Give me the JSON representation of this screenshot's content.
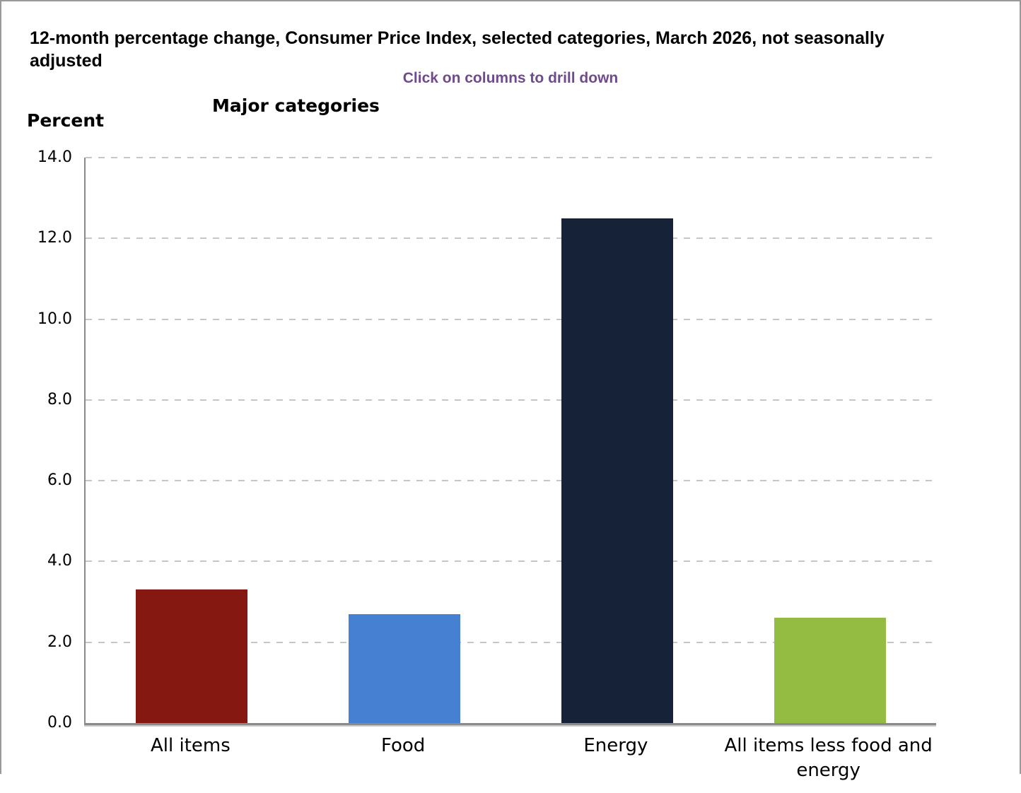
{
  "window": {
    "background_color": "#FFFFFF",
    "frame_border_color": "#999999"
  },
  "header": {
    "title": "12-month percentage change, Consumer Price Index, selected categories, March 2026, not seasonally adjusted",
    "subtitle": "Click on columns to drill down",
    "subtitle_color": "#6F4B8C"
  },
  "chart_data": {
    "type": "bar",
    "title": "Major categories",
    "ylabel": "Percent",
    "xlabel": "",
    "categories": [
      "All items",
      "Food",
      "Energy",
      "All items less food and energy"
    ],
    "values": [
      3.3,
      2.7,
      12.5,
      2.6
    ],
    "bar_colors": [
      "#851911",
      "#4680D2",
      "#152238",
      "#94BC42"
    ],
    "ylim": [
      0,
      14
    ],
    "yticks": [
      0,
      2,
      4,
      6,
      8,
      10,
      12,
      14
    ],
    "ytick_labels": [
      "0.0",
      "2.0",
      "4.0",
      "6.0",
      "8.0",
      "10.0",
      "12.0",
      "14.0"
    ],
    "grid": "horizontal-dashed",
    "gridline_color": "#C6C6C6",
    "axis_color": "#8A8A8A",
    "legend": "none",
    "bars_clickable": true
  }
}
